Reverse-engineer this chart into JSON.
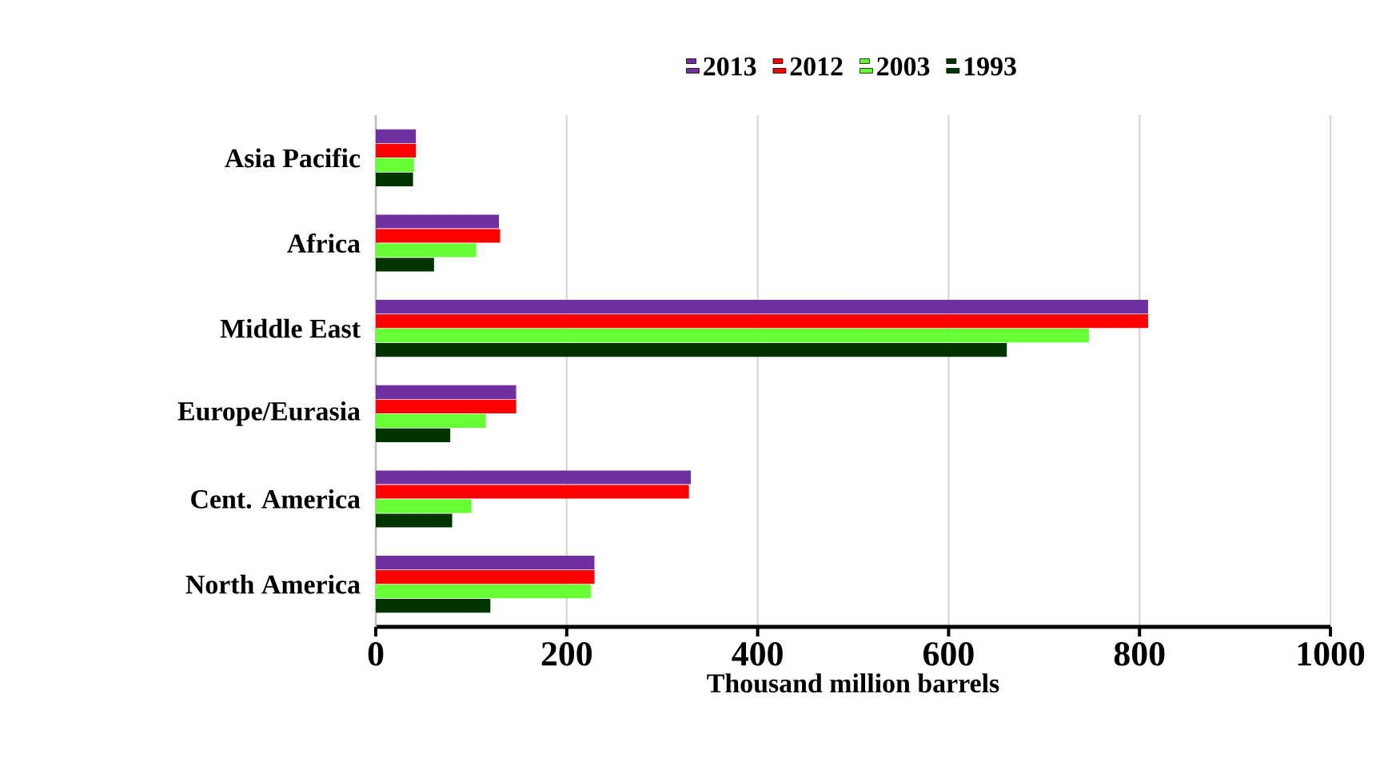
{
  "chart_data": {
    "type": "bar",
    "orientation": "horizontal",
    "xlabel": "Thousand million barrels",
    "categories": [
      "Asia Pacific",
      "Africa",
      "Middle East",
      "Europe/Eurasia",
      "Cent. America",
      "North America"
    ],
    "series": [
      {
        "name": "2013",
        "color": "#7030a0",
        "values": [
          42,
          129,
          809,
          147,
          330,
          229
        ]
      },
      {
        "name": "2012",
        "color": "#ff0000",
        "values": [
          42,
          130,
          809,
          147,
          328,
          229
        ]
      },
      {
        "name": "2003",
        "color": "#66ff33",
        "values": [
          40,
          105,
          747,
          115,
          100,
          225
        ]
      },
      {
        "name": "1993",
        "color": "#003300",
        "values": [
          39,
          61,
          661,
          78,
          80,
          120
        ]
      }
    ],
    "xlim": [
      0,
      1000
    ],
    "xticks": [
      0,
      200,
      400,
      600,
      800,
      1000
    ],
    "grid": "x",
    "legend": "top"
  }
}
